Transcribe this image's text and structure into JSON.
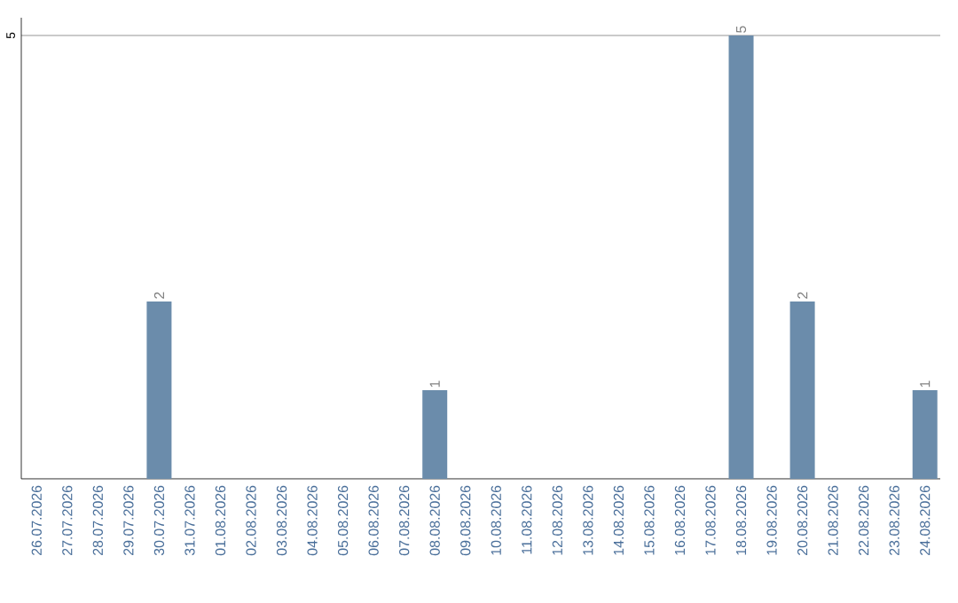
{
  "chart_data": {
    "type": "bar",
    "categories": [
      "26.07.2026",
      "27.07.2026",
      "28.07.2026",
      "29.07.2026",
      "30.07.2026",
      "31.07.2026",
      "01.08.2026",
      "02.08.2026",
      "03.08.2026",
      "04.08.2026",
      "05.08.2026",
      "06.08.2026",
      "07.08.2026",
      "08.08.2026",
      "09.08.2026",
      "10.08.2026",
      "11.08.2026",
      "12.08.2026",
      "13.08.2026",
      "14.08.2026",
      "15.08.2026",
      "16.08.2026",
      "17.08.2026",
      "18.08.2026",
      "19.08.2026",
      "20.08.2026",
      "21.08.2026",
      "22.08.2026",
      "23.08.2026",
      "24.08.2026"
    ],
    "values": [
      0,
      0,
      0,
      0,
      2,
      0,
      0,
      0,
      0,
      0,
      0,
      0,
      0,
      1,
      0,
      0,
      0,
      0,
      0,
      0,
      0,
      0,
      0,
      5,
      0,
      2,
      0,
      0,
      0,
      1
    ],
    "value_labels": [
      null,
      null,
      null,
      null,
      "2",
      null,
      null,
      null,
      null,
      null,
      null,
      null,
      null,
      "1",
      null,
      null,
      null,
      null,
      null,
      null,
      null,
      null,
      null,
      "5",
      null,
      "2",
      null,
      null,
      null,
      "1"
    ],
    "color": "#6b8cab",
    "ylim": [
      0,
      5.2
    ],
    "yticks": [
      5
    ],
    "grid": "y"
  }
}
